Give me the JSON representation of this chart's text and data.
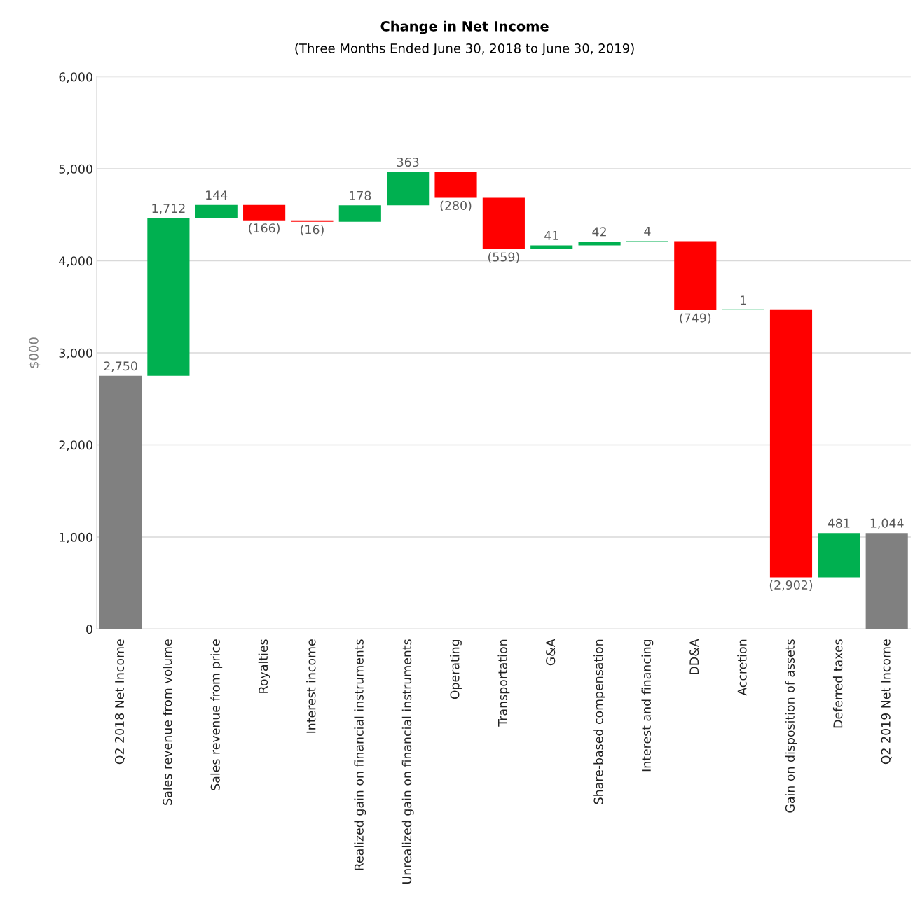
{
  "chart_data": {
    "type": "bar",
    "title": "Change in Net Income",
    "subtitle": "(Three Months Ended June 30, 2018 to June 30, 2019)",
    "ylabel": "$000",
    "categories": [
      "Q2 2018 Net Income",
      "Sales revenue from volume",
      "Sales revenue from price",
      "Royalties",
      "Interest income",
      "Realized gain on financial instruments",
      "Unrealized gain on financial instruments",
      "Operating",
      "Transportation",
      "G&A",
      "Share-based compensation",
      "Interest and financing",
      "DD&A",
      "Accretion",
      "Gain on disposition of assets",
      "Deferred taxes",
      "Q2 2019 Net Income"
    ],
    "values": [
      2750,
      1712,
      144,
      -166,
      -16,
      178,
      363,
      -280,
      -559,
      41,
      42,
      4,
      -749,
      1,
      -2902,
      481,
      1044
    ],
    "base": [
      0,
      2750,
      4462,
      4606,
      4440,
      4424,
      4602,
      4965,
      4685,
      4126,
      4167,
      4209,
      4213,
      3464,
      3465,
      563,
      0
    ],
    "colors": [
      "#808080",
      "#00b050",
      "#00b050",
      "#ff0000",
      "#ff0000",
      "#00b050",
      "#00b050",
      "#ff0000",
      "#ff0000",
      "#00b050",
      "#00b050",
      "#00b050",
      "#ff0000",
      "#00b050",
      "#ff0000",
      "#00b050",
      "#808080"
    ],
    "value_labels": [
      "2,750",
      "1,712",
      "144",
      "(166)",
      "(16)",
      "178",
      "363",
      "(280)",
      "(559)",
      "41",
      "42",
      "4",
      "(749)",
      "1",
      "(2,902)",
      "481",
      "1,044"
    ],
    "ylim": [
      0,
      6000
    ],
    "yticks": [
      {
        "value": 0,
        "label": "0"
      },
      {
        "value": 1000,
        "label": "1,000"
      },
      {
        "value": 2000,
        "label": "2,000"
      },
      {
        "value": 3000,
        "label": "3,000"
      },
      {
        "value": 4000,
        "label": "4,000"
      },
      {
        "value": 5000,
        "label": "5,000"
      },
      {
        "value": 6000,
        "label": "6,000"
      }
    ],
    "grid": "y",
    "legend": false
  }
}
